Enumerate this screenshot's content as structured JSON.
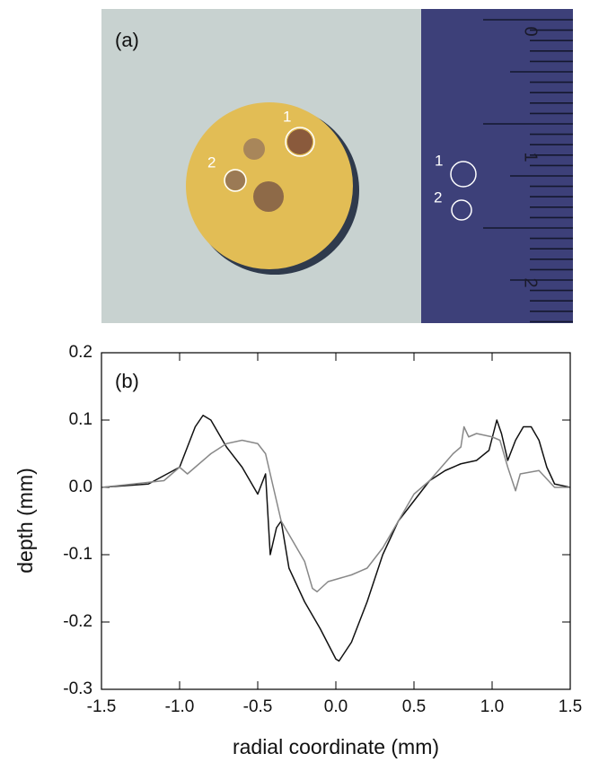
{
  "photo": {
    "label": "(a)",
    "disk_marks": [
      "1",
      "2"
    ],
    "ruler_marks": [
      "1",
      "2"
    ],
    "ruler_numbers": [
      "0",
      "1",
      "2"
    ]
  },
  "chart_data": {
    "type": "line",
    "annotation": "(b)",
    "x_label": "radial coordinate (mm)",
    "y_label": "depth (mm)",
    "xlim": [
      -1.5,
      1.5
    ],
    "ylim": [
      -0.3,
      0.2
    ],
    "xticks": [
      -1.5,
      {
        "value": -1,
        "label": "-1.0"
      },
      -0.5,
      {
        "value": 0,
        "label": "0.0"
      },
      0.5,
      {
        "value": 1,
        "label": "1.0"
      },
      1.5
    ],
    "yticks": [
      -0.3,
      -0.2,
      -0.1,
      {
        "value": 0,
        "label": "0.0"
      },
      0.1,
      0.2
    ],
    "series": [
      {
        "color": "#111111",
        "x": [
          -1.5,
          -1.2,
          -1.0,
          -0.95,
          -0.9,
          -0.85,
          -0.8,
          -0.7,
          -0.6,
          -0.55,
          -0.5,
          -0.45,
          -0.42,
          -0.38,
          -0.35,
          -0.3,
          -0.2,
          -0.1,
          0.0,
          0.02,
          0.1,
          0.2,
          0.3,
          0.4,
          0.5,
          0.6,
          0.7,
          0.8,
          0.9,
          0.98,
          1.03,
          1.06,
          1.1,
          1.15,
          1.2,
          1.25,
          1.3,
          1.35,
          1.4,
          1.5
        ],
        "values": [
          0.0,
          0.005,
          0.03,
          0.06,
          0.09,
          0.107,
          0.1,
          0.06,
          0.03,
          0.01,
          -0.01,
          0.02,
          -0.1,
          -0.06,
          -0.05,
          -0.12,
          -0.17,
          -0.21,
          -0.255,
          -0.258,
          -0.23,
          -0.17,
          -0.1,
          -0.05,
          -0.02,
          0.01,
          0.025,
          0.035,
          0.04,
          0.055,
          0.1,
          0.08,
          0.04,
          0.07,
          0.09,
          0.09,
          0.07,
          0.03,
          0.005,
          0.0
        ]
      },
      {
        "color": "#888888",
        "x": [
          -1.5,
          -1.1,
          -1.0,
          -0.95,
          -0.9,
          -0.8,
          -0.7,
          -0.6,
          -0.5,
          -0.45,
          -0.4,
          -0.35,
          -0.3,
          -0.2,
          -0.15,
          -0.12,
          -0.05,
          0.1,
          0.2,
          0.3,
          0.4,
          0.5,
          0.6,
          0.75,
          0.8,
          0.82,
          0.85,
          0.9,
          1.0,
          1.05,
          1.1,
          1.15,
          1.18,
          1.3,
          1.4,
          1.5
        ],
        "values": [
          0.0,
          0.01,
          0.03,
          0.02,
          0.03,
          0.05,
          0.065,
          0.07,
          0.065,
          0.05,
          0.0,
          -0.05,
          -0.07,
          -0.11,
          -0.15,
          -0.155,
          -0.14,
          -0.13,
          -0.12,
          -0.09,
          -0.05,
          -0.01,
          0.01,
          0.05,
          0.06,
          0.09,
          0.075,
          0.08,
          0.075,
          0.07,
          0.03,
          -0.005,
          0.02,
          0.025,
          0.0,
          0.0
        ]
      }
    ]
  }
}
